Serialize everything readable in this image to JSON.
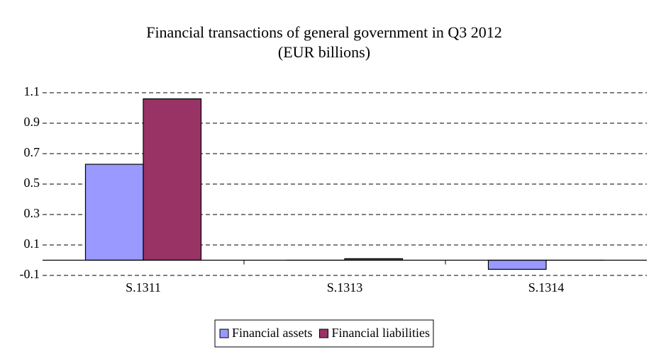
{
  "chart_data": {
    "type": "bar",
    "title": "Financial transactions of general government in Q3 2012",
    "subtitle": "(EUR billions)",
    "categories": [
      "S.1311",
      "S.1313",
      "S.1314"
    ],
    "series": [
      {
        "name": "Financial assets",
        "color": "#9999ff",
        "values": [
          0.63,
          0.0,
          -0.06
        ]
      },
      {
        "name": "Financial liabilities",
        "color": "#993366",
        "values": [
          1.06,
          0.01,
          0.0
        ]
      }
    ],
    "ylim": [
      -0.1,
      1.1
    ],
    "yticks": [
      -0.1,
      0.1,
      0.3,
      0.5,
      0.7,
      0.9,
      1.1
    ],
    "grid": true,
    "legend": "bottom"
  }
}
